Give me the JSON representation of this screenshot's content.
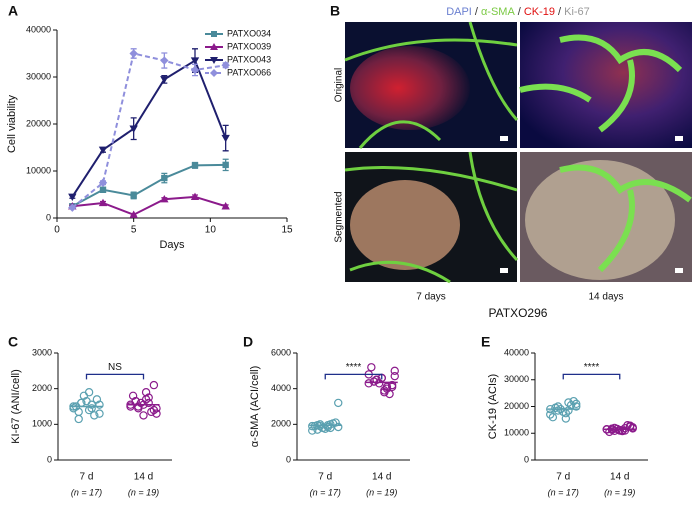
{
  "chart_data": [
    {
      "type": "line",
      "label": "A",
      "xlabel": "Days",
      "ylabel": "Cell viability",
      "xlim": [
        0,
        15
      ],
      "xticks": [
        0,
        5,
        10,
        15
      ],
      "ylim": [
        0,
        40000
      ],
      "yticks": [
        0,
        10000,
        20000,
        30000,
        40000
      ],
      "legend": "top-right",
      "series": [
        {
          "name": "PATXO034",
          "color": "#4a8a9a",
          "marker": "square",
          "dashed": false,
          "x": [
            1,
            3,
            5,
            7,
            9,
            11
          ],
          "values": [
            2500,
            6000,
            4800,
            8500,
            11200,
            11300
          ],
          "errors": [
            300,
            500,
            700,
            1000,
            600,
            1200
          ]
        },
        {
          "name": "PATXO039",
          "color": "#8b1a8b",
          "marker": "triangle-up",
          "dashed": false,
          "x": [
            1,
            3,
            5,
            7,
            9,
            11
          ],
          "values": [
            2500,
            3200,
            700,
            4000,
            4500,
            2500
          ],
          "errors": [
            200,
            300,
            200,
            300,
            400,
            300
          ]
        },
        {
          "name": "PATXO043",
          "color": "#1f1f6e",
          "marker": "triangle-down",
          "dashed": false,
          "x": [
            1,
            3,
            5,
            7,
            9,
            11
          ],
          "values": [
            4500,
            14500,
            19000,
            29500,
            33500,
            17000
          ],
          "errors": [
            300,
            500,
            2300,
            800,
            2500,
            2700
          ]
        },
        {
          "name": "PATXO066",
          "color": "#8f8fdc",
          "marker": "diamond",
          "dashed": true,
          "x": [
            1,
            3,
            5,
            7,
            9,
            11
          ],
          "values": [
            2200,
            7500,
            35000,
            33500,
            31500,
            32500
          ],
          "errors": [
            200,
            400,
            1000,
            1600,
            1200,
            500
          ]
        }
      ]
    },
    {
      "type": "dot",
      "label": "C",
      "ylabel": "KI-67 (ANI/cell)",
      "annotation": "NS",
      "ylim": [
        0,
        3000
      ],
      "yticks": [
        0,
        1000,
        2000,
        3000
      ],
      "categories": [
        "7 d",
        "14 d"
      ],
      "category_notes": [
        "(n = 17)",
        "(n = 19)"
      ],
      "colors": [
        "#5aa0b0",
        "#8b1a8b"
      ],
      "means": [
        1500,
        1550
      ],
      "values": [
        [
          1500,
          1450,
          1600,
          1550,
          1400,
          1350,
          1700,
          1650,
          1500,
          1250,
          1800,
          1450,
          1550,
          1600,
          1300,
          1900,
          1150
        ],
        [
          1550,
          1600,
          1500,
          1450,
          1700,
          1650,
          1400,
          1550,
          1800,
          1350,
          1600,
          1500,
          1750,
          1450,
          1300,
          1900,
          1650,
          2100,
          1250
        ]
      ]
    },
    {
      "type": "dot",
      "label": "D",
      "ylabel": "α-SMA (ACI/cell)",
      "annotation": "****",
      "ylim": [
        0,
        6000
      ],
      "yticks": [
        0,
        2000,
        4000,
        6000
      ],
      "categories": [
        "7 d",
        "14 d"
      ],
      "category_notes": [
        "(n = 17)",
        "(n = 19)"
      ],
      "colors": [
        "#5aa0b0",
        "#8b1a8b"
      ],
      "means": [
        1950,
        4350
      ],
      "values": [
        [
          1900,
          1800,
          2000,
          1850,
          1950,
          1700,
          2100,
          1750,
          1900,
          2050,
          1800,
          1650,
          2000,
          1900,
          3200,
          1850,
          1950
        ],
        [
          4300,
          4100,
          4500,
          4700,
          3900,
          4400,
          4200,
          4600,
          5200,
          3700,
          4300,
          4800,
          4000,
          4500,
          5000,
          3800,
          4400,
          4100,
          4600
        ]
      ]
    },
    {
      "type": "dot",
      "label": "E",
      "ylabel": "CK-19 (ACIs)",
      "annotation": "****",
      "ylim": [
        0,
        40000
      ],
      "yticks": [
        0,
        10000,
        20000,
        30000,
        40000
      ],
      "categories": [
        "7 d",
        "14 d"
      ],
      "category_notes": [
        "(n = 17)",
        "(n = 19)"
      ],
      "colors": [
        "#5aa0b0",
        "#8b1a8b"
      ],
      "means": [
        19000,
        11500
      ],
      "values": [
        [
          19000,
          18500,
          20000,
          21000,
          17500,
          19500,
          22000,
          18000,
          16000,
          20500,
          19000,
          17000,
          21500,
          18500,
          20000,
          15500,
          19500
        ],
        [
          11500,
          11000,
          12000,
          11800,
          10800,
          11300,
          12500,
          11200,
          10500,
          13000,
          11600,
          11400,
          11900,
          10900,
          12200,
          11100,
          11700,
          12800,
          11000
        ]
      ]
    }
  ],
  "image_panel": {
    "label": "B",
    "separator": "/",
    "stains": [
      {
        "name": "DAPI",
        "color": "#6a7fd0"
      },
      {
        "name": "α-SMA",
        "color": "#7ac943"
      },
      {
        "name": "CK-19",
        "color": "#e01010"
      },
      {
        "name": "Ki-67",
        "color": "#999999"
      }
    ],
    "rows": [
      "Original",
      "Segmented"
    ],
    "columns": [
      "7 days",
      "14 days"
    ],
    "caption": "PATXO296"
  }
}
